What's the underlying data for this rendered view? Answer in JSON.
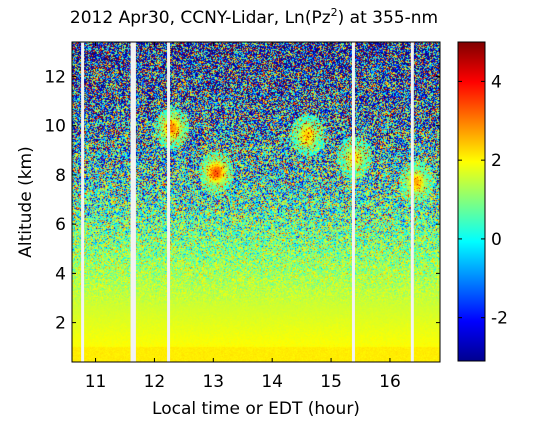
{
  "chart_data": {
    "type": "heatmap",
    "title": "2012 Apr30, CCNY-Lidar, Ln(Pz",
    "title_superscript": "2",
    "title_suffix": ") at 355-nm",
    "xlabel": "Local time or EDT (hour)",
    "ylabel": "Altitude (km)",
    "xlim": [
      10.6,
      16.85
    ],
    "ylim": [
      0.4,
      13.4
    ],
    "x_ticks": [
      11,
      12,
      13,
      14,
      15,
      16
    ],
    "y_ticks": [
      2,
      4,
      6,
      8,
      10,
      12
    ],
    "colorbar": {
      "range": [
        -3.1,
        5
      ],
      "ticks": [
        -2,
        0,
        2,
        4
      ],
      "colormap": "jet",
      "colors": [
        "#00008f",
        "#0000ff",
        "#0080ff",
        "#00ffff",
        "#80ff80",
        "#ffff00",
        "#ff8000",
        "#ff0000",
        "#800000"
      ]
    },
    "data_gaps_hour": [
      10.78,
      11.62,
      11.66,
      12.24,
      15.38,
      16.38
    ],
    "features": [
      {
        "x": 12.3,
        "y": 9.9,
        "value": 3.0
      },
      {
        "x": 13.05,
        "y": 8.1,
        "value": 3.5
      },
      {
        "x": 14.6,
        "y": 9.6,
        "value": 2.4
      },
      {
        "x": 15.4,
        "y": 8.7,
        "value": 2.0
      },
      {
        "x": 16.45,
        "y": 7.7,
        "value": 2.6
      }
    ]
  }
}
